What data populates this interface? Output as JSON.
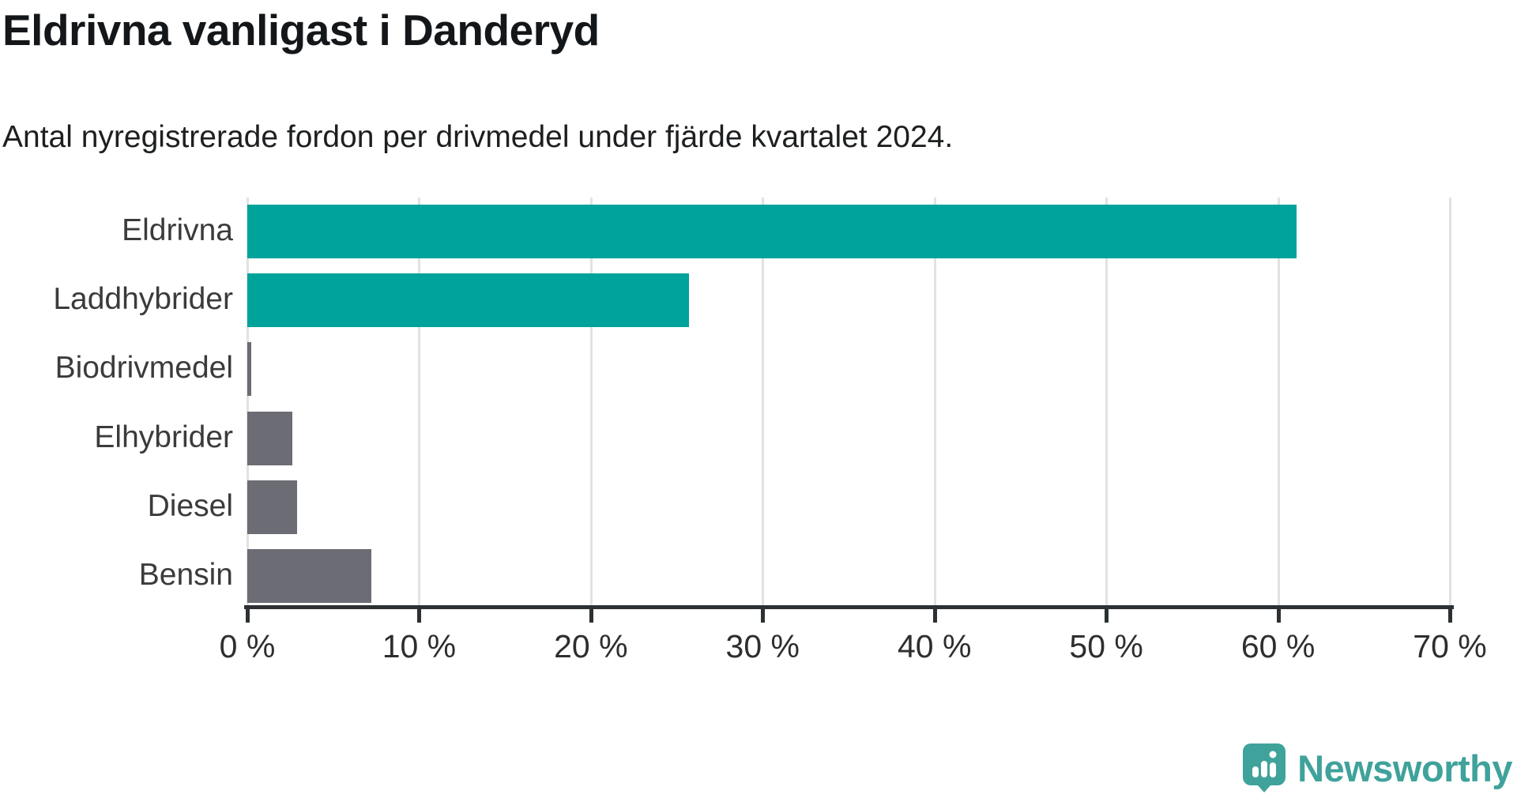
{
  "header": {
    "title": "Eldrivna vanligast i Danderyd",
    "subtitle": "Antal nyregistrerade fordon per drivmedel under fjärde kvartalet 2024."
  },
  "chart_data": {
    "type": "bar",
    "orientation": "horizontal",
    "title": "Eldrivna vanligast i Danderyd",
    "subtitle": "Antal nyregistrerade fordon per drivmedel under fjärde kvartalet 2024.",
    "categories": [
      "Eldrivna",
      "Laddhybrider",
      "Biodrivmedel",
      "Elhybrider",
      "Diesel",
      "Bensin"
    ],
    "values": [
      61.1,
      25.7,
      0.25,
      2.6,
      2.9,
      7.2
    ],
    "unit": "%",
    "xlim": [
      0,
      70
    ],
    "xticks": [
      0,
      10,
      20,
      30,
      40,
      50,
      60,
      70
    ],
    "xtick_labels": [
      "0 %",
      "10 %",
      "20 %",
      "30 %",
      "40 %",
      "50 %",
      "60 %",
      "70 %"
    ],
    "bar_colors": [
      "#00A39B",
      "#00A39B",
      "#6C6C74",
      "#6C6C74",
      "#6C6C74",
      "#6C6C74"
    ],
    "grid": true,
    "legend": "none",
    "ylabel": "",
    "xlabel": ""
  },
  "branding": {
    "logo_text": "Newsworthy",
    "logo_color": "#3FA29B"
  },
  "colors": {
    "accent_teal": "#00A39B",
    "neutral_gray": "#6C6C74",
    "gridline": "#e2e2e2",
    "axis": "#2d3134",
    "text_dark": "#14171a"
  }
}
